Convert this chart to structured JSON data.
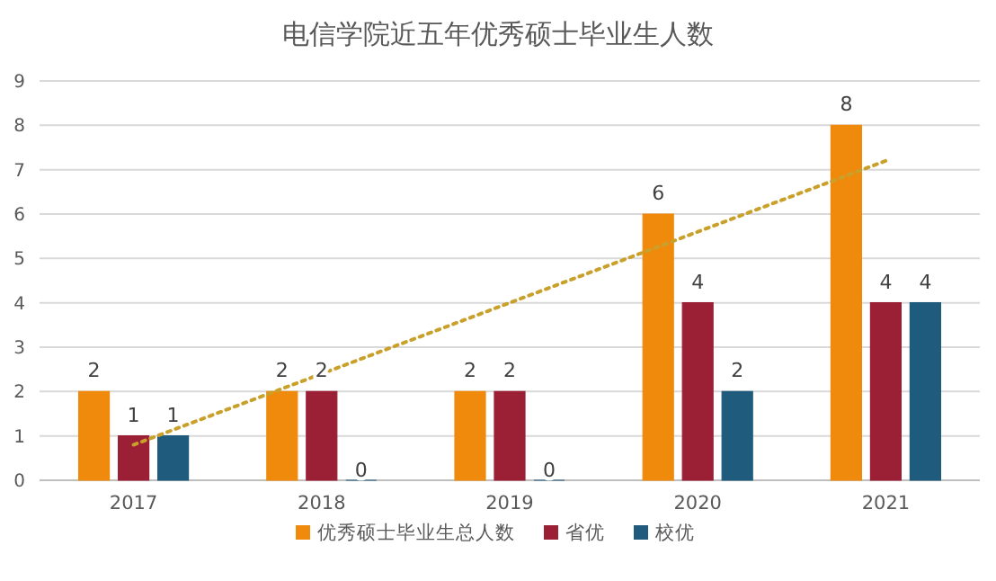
{
  "chart_data": {
    "type": "bar",
    "title": "电信学院近五年优秀硕士毕业生人数",
    "categories": [
      "2017",
      "2018",
      "2019",
      "2020",
      "2021"
    ],
    "series": [
      {
        "name": "优秀硕士毕业生总人数",
        "color": "#f08a0c",
        "values": [
          2,
          2,
          2,
          6,
          8
        ],
        "value_labels": [
          "2",
          "2",
          "2",
          "6",
          "8"
        ]
      },
      {
        "name": "省优",
        "color": "#9b1f35",
        "values": [
          1,
          2,
          2,
          4,
          4
        ],
        "value_labels": [
          "1",
          "2",
          "2",
          "4",
          "4"
        ]
      },
      {
        "name": "校优",
        "color": "#1f5b7c",
        "values": [
          1,
          0,
          0,
          2,
          4
        ],
        "value_labels": [
          "1",
          "0",
          "0",
          "2",
          "4"
        ]
      },
      {
        "type": "line",
        "color": "#c9a02a",
        "line_style": "dotted",
        "values": [
          0.8,
          2.4,
          4.0,
          5.6,
          7.2
        ]
      }
    ],
    "ylim": [
      0,
      9
    ],
    "yticks": [
      0,
      1,
      2,
      3,
      4,
      5,
      6,
      7,
      8,
      9
    ],
    "grid": "y",
    "legend": "bottom"
  }
}
